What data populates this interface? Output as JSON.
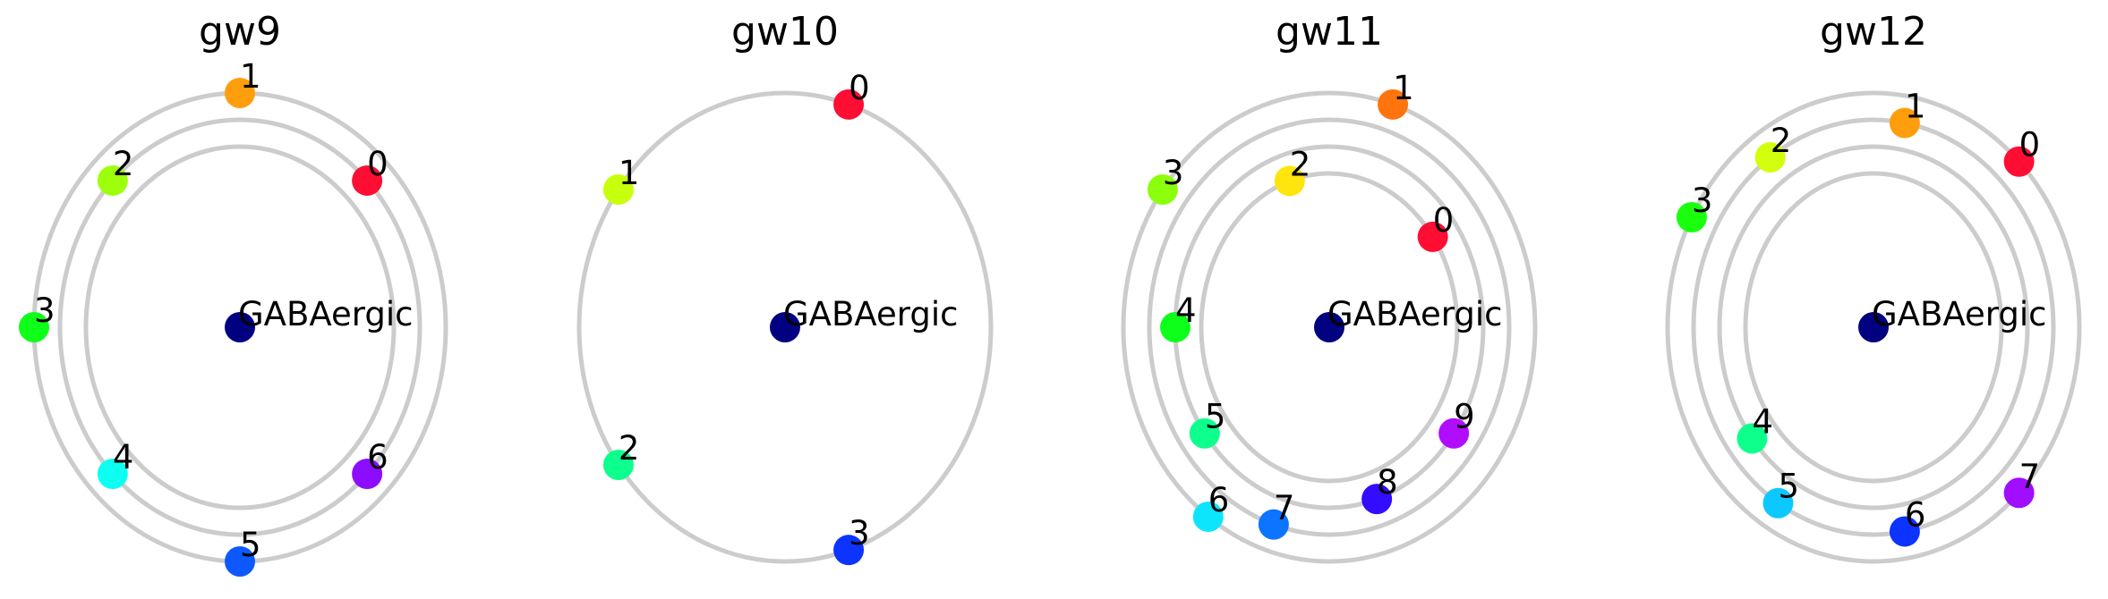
{
  "chart_data": [
    {
      "type": "scatter",
      "title": "gw9",
      "center": {
        "label": "GABAergic",
        "color": "#000080"
      },
      "rings": 3,
      "nodes": [
        {
          "label": "0",
          "ring": 2,
          "angle": 45,
          "color": "#ff0d33"
        },
        {
          "label": "1",
          "ring": 3,
          "angle": 90,
          "color": "#ff9e0d"
        },
        {
          "label": "2",
          "ring": 2,
          "angle": 135,
          "color": "#9eff0d"
        },
        {
          "label": "3",
          "ring": 3,
          "angle": 180,
          "color": "#0dff1a"
        },
        {
          "label": "4",
          "ring": 2,
          "angle": 225,
          "color": "#0dfff2"
        },
        {
          "label": "5",
          "ring": 3,
          "angle": 270,
          "color": "#0d59ff"
        },
        {
          "label": "6",
          "ring": 2,
          "angle": 315,
          "color": "#8c0dff"
        }
      ]
    },
    {
      "type": "scatter",
      "title": "gw10",
      "center": {
        "label": "GABAergic",
        "color": "#000080"
      },
      "rings": 1,
      "nodes": [
        {
          "label": "0",
          "ring": 1,
          "angle": 72,
          "color": "#ff0d33"
        },
        {
          "label": "1",
          "ring": 1,
          "angle": 144,
          "color": "#c8ff0d"
        },
        {
          "label": "2",
          "ring": 1,
          "angle": 216,
          "color": "#0dff8c"
        },
        {
          "label": "3",
          "ring": 1,
          "angle": 288,
          "color": "#0d33ff"
        }
      ]
    },
    {
      "type": "scatter",
      "title": "gw11",
      "center": {
        "label": "GABAergic",
        "color": "#000080"
      },
      "rings": 4,
      "nodes": [
        {
          "label": "0",
          "ring": 1,
          "angle": 36,
          "color": "#ff0d33"
        },
        {
          "label": "1",
          "ring": 4,
          "angle": 72,
          "color": "#ff740d"
        },
        {
          "label": "2",
          "ring": 1,
          "angle": 108,
          "color": "#ffe50d"
        },
        {
          "label": "3",
          "ring": 4,
          "angle": 144,
          "color": "#8cff0d"
        },
        {
          "label": "4",
          "ring": 2,
          "angle": 180,
          "color": "#0dff1a"
        },
        {
          "label": "5",
          "ring": 2,
          "angle": 216,
          "color": "#0dff8c"
        },
        {
          "label": "6",
          "ring": 4,
          "angle": 234,
          "color": "#0de5ff"
        },
        {
          "label": "7",
          "ring": 3,
          "angle": 252,
          "color": "#0d74ff"
        },
        {
          "label": "8",
          "ring": 2,
          "angle": 288,
          "color": "#330dff"
        },
        {
          "label": "9",
          "ring": 2,
          "angle": 324,
          "color": "#b00dff"
        }
      ]
    },
    {
      "type": "scatter",
      "title": "gw12",
      "center": {
        "label": "GABAergic",
        "color": "#000080"
      },
      "rings": 4,
      "nodes": [
        {
          "label": "0",
          "ring": 4,
          "angle": 45,
          "color": "#ff0d33"
        },
        {
          "label": "1",
          "ring": 3,
          "angle": 80,
          "color": "#ff9e0d"
        },
        {
          "label": "2",
          "ring": 3,
          "angle": 125,
          "color": "#d2ff0d"
        },
        {
          "label": "3",
          "ring": 4,
          "angle": 152,
          "color": "#1aff0d"
        },
        {
          "label": "4",
          "ring": 2,
          "angle": 218,
          "color": "#0dff8c"
        },
        {
          "label": "5",
          "ring": 3,
          "angle": 238,
          "color": "#0dc8ff"
        },
        {
          "label": "6",
          "ring": 3,
          "angle": 280,
          "color": "#0d33ff"
        },
        {
          "label": "7",
          "ring": 4,
          "angle": 315,
          "color": "#a00dff"
        }
      ]
    }
  ]
}
